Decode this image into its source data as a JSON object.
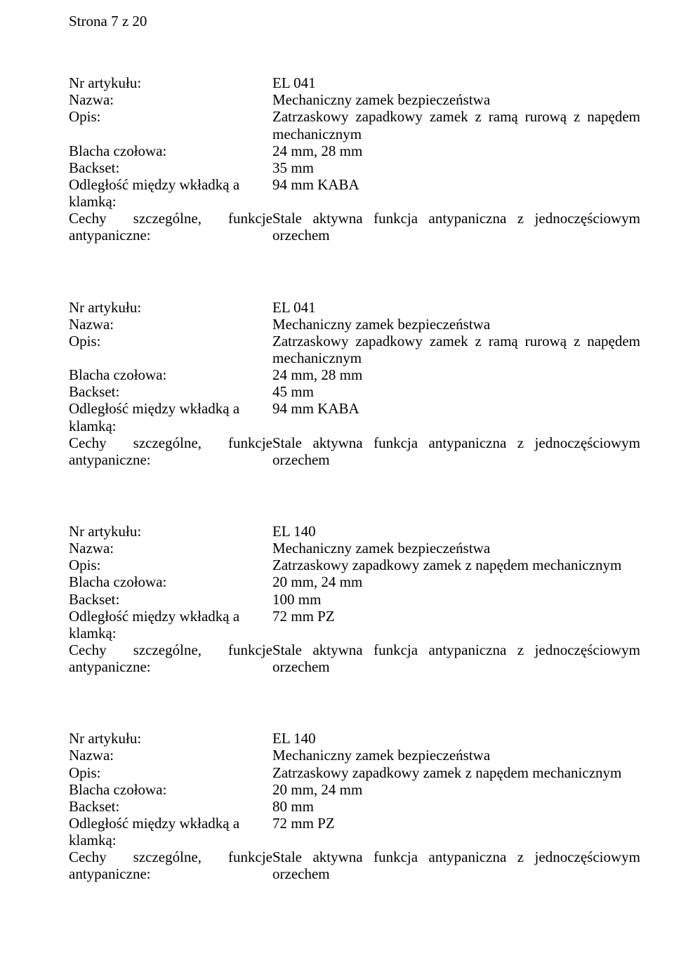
{
  "page_indicator": "Strona 7 z 20",
  "labels": {
    "nr": "Nr artykułu:",
    "nazwa": "Nazwa:",
    "opis": "Opis:",
    "blacha": "Blacha czołowa:",
    "backset": "Backset:",
    "odleglosc1": "Odległość między wkładką a",
    "odleglosc2": "klamką:",
    "cechy1": "Cechy szczególne, funkcje",
    "cechy2": "antypaniczne:"
  },
  "blocks": [
    {
      "nr": "EL 041",
      "nazwa": "Mechaniczny zamek bezpieczeństwa",
      "opis1": "Zatrzaskowy zapadkowy zamek z ramą rurową z napędem",
      "opis2": "mechanicznym",
      "opis_justify": true,
      "blacha": "24 mm, 28 mm",
      "backset": "35 mm",
      "odleglosc": "94 mm KABA",
      "cechy1": "Stale aktywna funkcja antypaniczna z jednoczęściowym",
      "cechy2": "orzechem"
    },
    {
      "nr": "EL 041",
      "nazwa": "Mechaniczny zamek bezpieczeństwa",
      "opis1": "Zatrzaskowy zapadkowy zamek z ramą rurową z napędem",
      "opis2": "mechanicznym",
      "opis_justify": true,
      "blacha": "24 mm, 28 mm",
      "backset": "45 mm",
      "odleglosc": "94 mm KABA",
      "cechy1": "Stale aktywna funkcja antypaniczna z jednoczęściowym",
      "cechy2": "orzechem"
    },
    {
      "nr": "EL 140",
      "nazwa": "Mechaniczny zamek bezpieczeństwa",
      "opis1": "Zatrzaskowy zapadkowy zamek z napędem mechanicznym",
      "opis2": "",
      "opis_justify": false,
      "blacha": "20 mm, 24 mm",
      "backset": "100 mm",
      "odleglosc": "72 mm PZ",
      "cechy1": "Stale aktywna funkcja antypaniczna z jednoczęściowym",
      "cechy2": "orzechem"
    },
    {
      "nr": "EL 140",
      "nazwa": "Mechaniczny zamek bezpieczeństwa",
      "opis1": "Zatrzaskowy zapadkowy zamek z napędem mechanicznym",
      "opis2": "",
      "opis_justify": false,
      "blacha": "20 mm, 24 mm",
      "backset": "80 mm",
      "odleglosc": "72 mm PZ",
      "cechy1": "Stale aktywna funkcja antypaniczna z jednoczęściowym",
      "cechy2": "orzechem"
    }
  ]
}
